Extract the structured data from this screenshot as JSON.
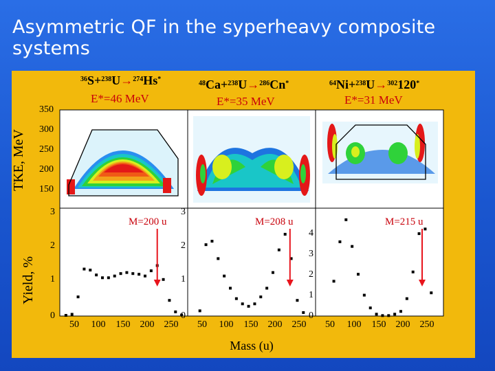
{
  "slide": {
    "title": "Asymmetric QF in the syperheavy composite systems"
  },
  "colors": {
    "background": "#1f5fd6",
    "panel": "#f2b90c",
    "marker": "#e8141c"
  },
  "figure": {
    "y_axis_top": "TKE, MeV",
    "y_axis_bottom": "Yield, %",
    "x_axis_label": "Mass (u)",
    "x_ticks": [
      "50",
      "100",
      "150",
      "200",
      "250"
    ],
    "panels": [
      {
        "reaction": {
          "proj_a": "36",
          "proj": "S",
          "targ_a": "238",
          "targ": "U",
          "cn_a": "274",
          "cn": "Hs",
          "star": "*"
        },
        "energy": "E*=46 MeV",
        "mass_label": "M=200 u",
        "top_y_ticks": [
          "350",
          "300",
          "250",
          "200",
          "150"
        ],
        "bottom_y_ticks": [
          "3",
          "2",
          "1",
          "0"
        ]
      },
      {
        "reaction": {
          "proj_a": "48",
          "proj": "Ca",
          "targ_a": "238",
          "targ": "U",
          "cn_a": "286",
          "cn": "Cn",
          "star": "*"
        },
        "energy": "E*=35 MeV",
        "mass_label": "M=208 u",
        "bottom_y_ticks": [
          "3",
          "2",
          "1",
          "0"
        ]
      },
      {
        "reaction": {
          "proj_a": "64",
          "proj": "Ni",
          "targ_a": "238",
          "targ": "U",
          "cn_a": "302",
          "cn": "120",
          "star": "*"
        },
        "energy": "E*=31 MeV",
        "mass_label": "M=215 u",
        "bottom_y_ticks": [
          "4",
          "3",
          "2",
          "1",
          "0"
        ]
      }
    ]
  },
  "chart_data": [
    {
      "type": "scatter",
      "title": "E*=46 MeV",
      "xlabel": "Mass (u)",
      "ylabel": "Yield, %",
      "xlim": [
        40,
        250
      ],
      "ylim": [
        0,
        3
      ],
      "marker_mass": 200,
      "x": [
        50,
        60,
        70,
        80,
        90,
        100,
        110,
        120,
        130,
        140,
        150,
        160,
        170,
        180,
        190,
        200,
        210,
        220,
        230,
        240
      ],
      "y": [
        0.02,
        0.05,
        0.55,
        1.35,
        1.32,
        1.18,
        1.1,
        1.1,
        1.15,
        1.22,
        1.25,
        1.22,
        1.2,
        1.15,
        1.3,
        1.45,
        1.05,
        0.45,
        0.12,
        0.03
      ]
    },
    {
      "type": "scatter",
      "title": "E*=35 MeV",
      "xlabel": "Mass (u)",
      "ylabel": "Yield, %",
      "xlim": [
        40,
        250
      ],
      "ylim": [
        0,
        3
      ],
      "marker_mass": 208,
      "x": [
        60,
        70,
        80,
        90,
        100,
        110,
        120,
        130,
        140,
        150,
        160,
        170,
        180,
        190,
        200,
        210,
        220,
        230
      ],
      "y": [
        0.15,
        2.05,
        2.15,
        1.65,
        1.15,
        0.8,
        0.5,
        0.35,
        0.28,
        0.35,
        0.55,
        0.8,
        1.25,
        1.9,
        2.35,
        1.65,
        0.45,
        0.1
      ]
    },
    {
      "type": "scatter",
      "title": "E*=31 MeV",
      "xlabel": "Mass (u)",
      "ylabel": "Yield, %",
      "xlim": [
        40,
        250
      ],
      "ylim": [
        0,
        4.5
      ],
      "marker_mass": 215,
      "x": [
        70,
        80,
        90,
        100,
        110,
        120,
        130,
        140,
        150,
        160,
        170,
        180,
        190,
        200,
        210,
        220,
        230
      ],
      "y": [
        1.5,
        3.2,
        4.15,
        3.0,
        1.8,
        0.9,
        0.35,
        0.08,
        0.02,
        0.02,
        0.08,
        0.2,
        0.75,
        1.9,
        3.55,
        3.75,
        1.0
      ]
    }
  ]
}
